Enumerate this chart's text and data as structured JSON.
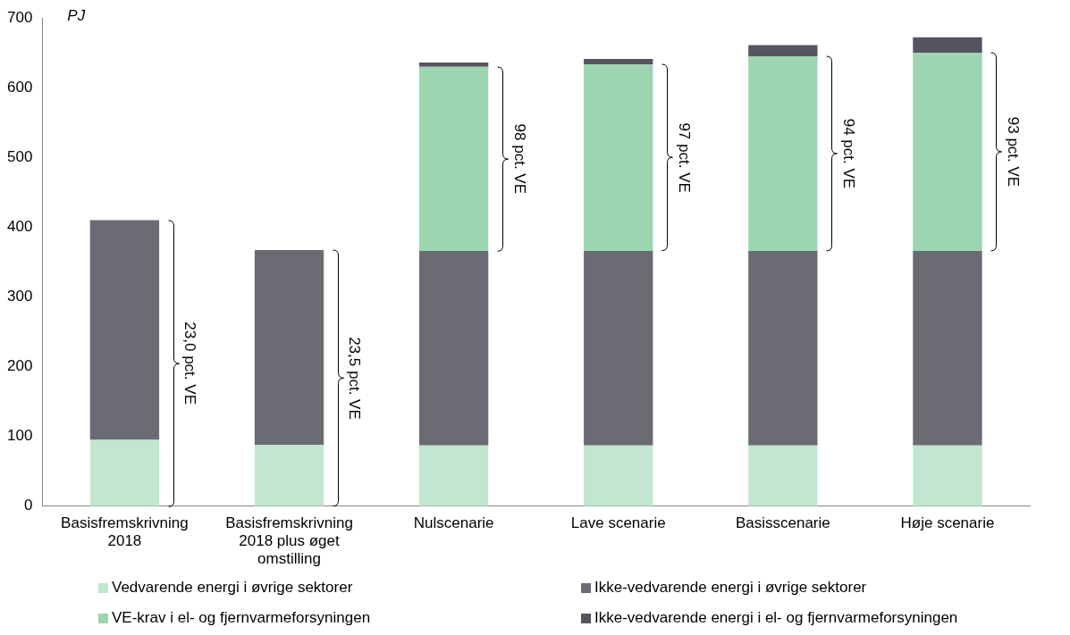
{
  "chart_data": {
    "type": "bar",
    "stacked": true,
    "ylabel": "PJ",
    "categories": [
      "Basisfremskrivning 2018",
      "Basisfremskrivning 2018 plus øget omstilling",
      "Nulscenarie",
      "Lave scenarie",
      "Basisscenarie",
      "Høje scenarie"
    ],
    "series": [
      {
        "name": "Vedvarende energi i øvrige sektorer",
        "color": "#c2e6cf",
        "values": [
          95,
          88,
          87,
          87,
          87,
          87
        ]
      },
      {
        "name": "Ikke-vedvarende energi i øvrige sektorer",
        "color": "#6b6b73",
        "values": [
          315,
          279,
          279,
          279,
          279,
          279
        ]
      },
      {
        "name": "VE-krav i el- og fjernvarmeforsyningen",
        "color": "#9dd5b0",
        "values": [
          0,
          0,
          264,
          267,
          279,
          284
        ]
      },
      {
        "name": "Ikke-vedvarende energi i el- og fjernvarmeforsyningen",
        "color": "#55555f",
        "values": [
          0,
          0,
          6,
          8,
          16,
          22
        ]
      }
    ],
    "ylim": [
      0,
      700
    ],
    "yticks": [
      0,
      100,
      200,
      300,
      400,
      500,
      600,
      700
    ],
    "grid": false,
    "legend": "bottom",
    "annotations": [
      "23,0 pct. VE",
      "23,5 pct. VE",
      "98 pct. VE",
      "97 pct. VE",
      "94 pct. VE",
      "93 pct. VE"
    ]
  }
}
